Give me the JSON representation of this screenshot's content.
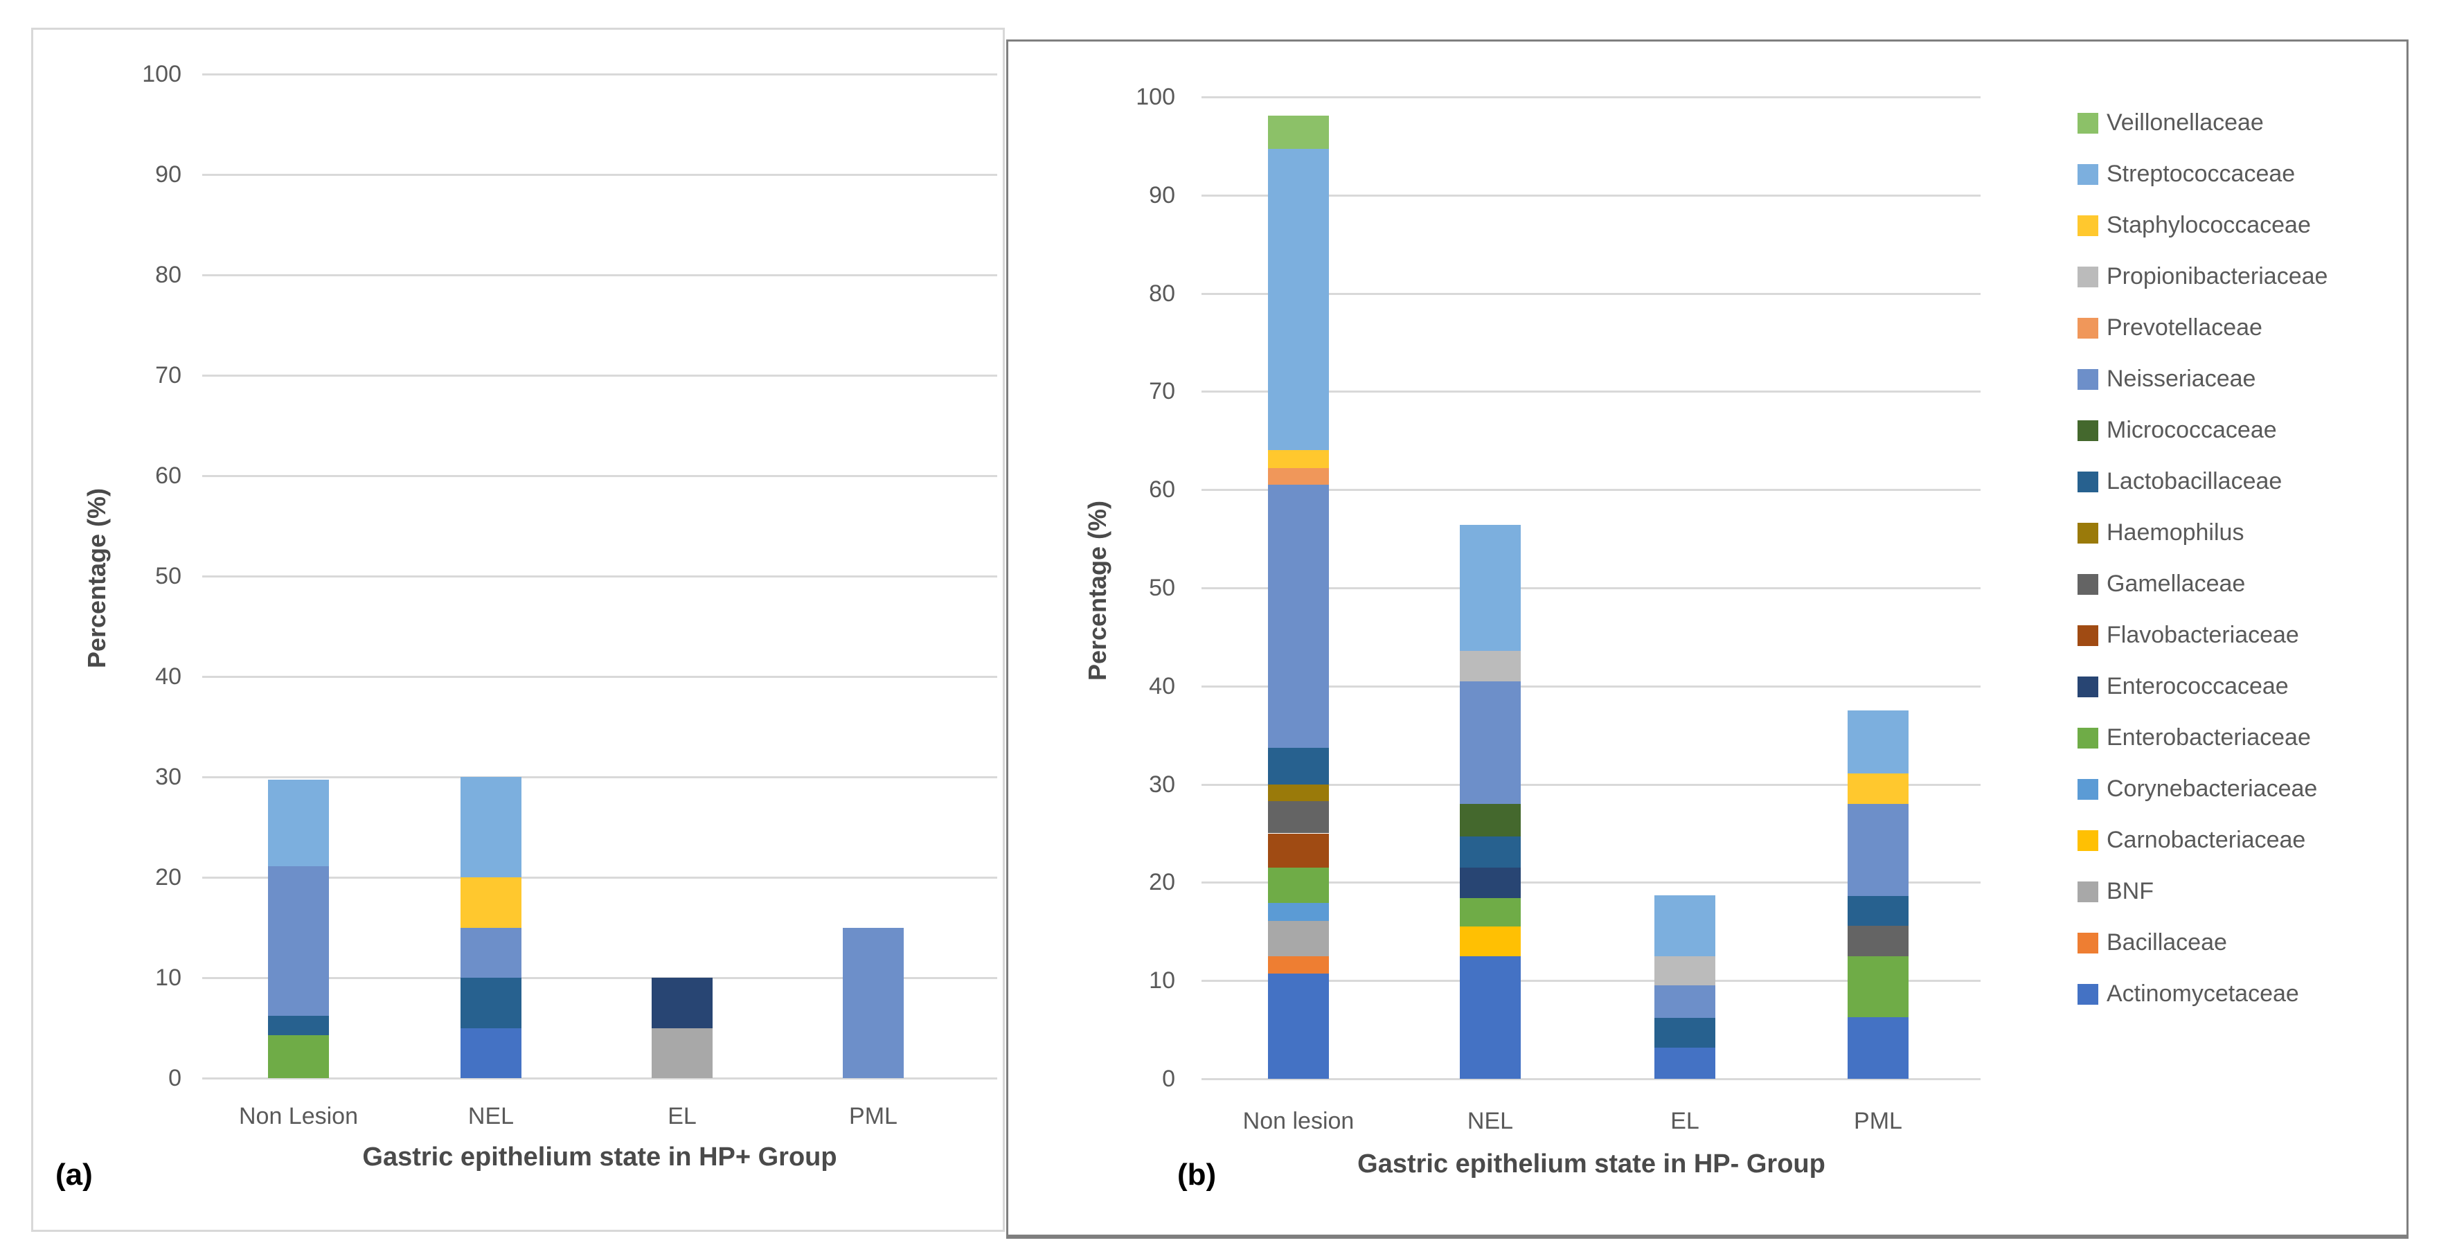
{
  "legend": {
    "items": [
      {
        "label": "Veillonellaceae",
        "color": "#8CC168"
      },
      {
        "label": "Streptococcaceae",
        "color": "#7CAFDE"
      },
      {
        "label": "Staphylococcaceae",
        "color": "#FFC82E"
      },
      {
        "label": "Propionibacteriaceae",
        "color": "#BBBBBB"
      },
      {
        "label": "Prevotellaceae",
        "color": "#F0975A"
      },
      {
        "label": "Neisseriaceae",
        "color": "#6D8FC9"
      },
      {
        "label": "Micrococcaceae",
        "color": "#44682D"
      },
      {
        "label": "Lactobacillaceae",
        "color": "#27618F"
      },
      {
        "label": "Haemophilus",
        "color": "#9A7A0A"
      },
      {
        "label": "Gamellaceae",
        "color": "#646464"
      },
      {
        "label": "Flavobacteriaceae",
        "color": "#A04B13"
      },
      {
        "label": "Enterococcaceae",
        "color": "#284573"
      },
      {
        "label": "Enterobacteriaceae",
        "color": "#6FAC47"
      },
      {
        "label": "Corynebacteriaceae",
        "color": "#5B9BD5"
      },
      {
        "label": "Carnobacteriaceae",
        "color": "#FFC003"
      },
      {
        "label": "BNF",
        "color": "#A8A8A8"
      },
      {
        "label": "Bacillaceae",
        "color": "#EE7E32"
      },
      {
        "label": "Actinomycetaceae",
        "color": "#4472C4"
      }
    ]
  },
  "chart_data": [
    {
      "type": "bar",
      "stacked": true,
      "panel_label": "(a)",
      "xlabel": "Gastric epithelium state in HP+ Group",
      "ylabel": "Percentage (%)",
      "categories": [
        "Non Lesion",
        "NEL",
        "EL",
        "PML"
      ],
      "ylim": [
        0,
        100
      ],
      "yticks": [
        0,
        10,
        20,
        30,
        40,
        50,
        60,
        70,
        80,
        90,
        100
      ],
      "grid": true,
      "legend_position": "none",
      "series": [
        {
          "name": "Veillonellaceae",
          "values": [
            0,
            0,
            0,
            0
          ]
        },
        {
          "name": "Streptococcaceae",
          "values": [
            8.6,
            10,
            0,
            0
          ]
        },
        {
          "name": "Staphylococcaceae",
          "values": [
            0,
            5,
            0,
            0
          ]
        },
        {
          "name": "Propionibacteriaceae",
          "values": [
            0,
            0,
            0,
            0
          ]
        },
        {
          "name": "Prevotellaceae",
          "values": [
            0,
            0,
            0,
            0
          ]
        },
        {
          "name": "Neisseriaceae",
          "values": [
            14.9,
            5,
            0,
            15
          ]
        },
        {
          "name": "Micrococcaceae",
          "values": [
            0,
            0,
            0,
            0
          ]
        },
        {
          "name": "Lactobacillaceae",
          "values": [
            1.9,
            5,
            0,
            0
          ]
        },
        {
          "name": "Haemophilus",
          "values": [
            0,
            0,
            0,
            0
          ]
        },
        {
          "name": "Gamellaceae",
          "values": [
            0,
            0,
            0,
            0
          ]
        },
        {
          "name": "Flavobacteriaceae",
          "values": [
            0,
            0,
            0,
            0
          ]
        },
        {
          "name": "Enterococcaceae",
          "values": [
            0,
            0,
            5,
            0
          ]
        },
        {
          "name": "Enterobacteriaceae",
          "values": [
            4.3,
            0,
            0,
            0
          ]
        },
        {
          "name": "Corynebacteriaceae",
          "values": [
            0,
            0,
            0,
            0
          ]
        },
        {
          "name": "Carnobacteriaceae",
          "values": [
            0,
            0,
            0,
            0
          ]
        },
        {
          "name": "BNF",
          "values": [
            0,
            0,
            5,
            0
          ]
        },
        {
          "name": "Bacillaceae",
          "values": [
            0,
            0,
            0,
            0
          ]
        },
        {
          "name": "Actinomycetaceae",
          "values": [
            0,
            5,
            0,
            0
          ]
        }
      ]
    },
    {
      "type": "bar",
      "stacked": true,
      "panel_label": "(b)",
      "xlabel": "Gastric epithelium state in HP- Group",
      "ylabel": "Percentage (%)",
      "categories": [
        "Non lesion",
        "NEL",
        "EL",
        "PML"
      ],
      "ylim": [
        0,
        100
      ],
      "yticks": [
        0,
        10,
        20,
        30,
        40,
        50,
        60,
        70,
        80,
        90,
        100
      ],
      "grid": true,
      "legend_position": "right",
      "series": [
        {
          "name": "Veillonellaceae",
          "values": [
            3.4,
            0,
            0,
            0
          ]
        },
        {
          "name": "Streptococcaceae",
          "values": [
            30.7,
            12.8,
            6.2,
            6.4
          ]
        },
        {
          "name": "Staphylococcaceae",
          "values": [
            1.8,
            0,
            0,
            3.1
          ]
        },
        {
          "name": "Propionibacteriaceae",
          "values": [
            0,
            3.1,
            3.0,
            0
          ]
        },
        {
          "name": "Prevotellaceae",
          "values": [
            1.7,
            0,
            0,
            0
          ]
        },
        {
          "name": "Neisseriaceae",
          "values": [
            26.8,
            12.5,
            3.3,
            9.4
          ]
        },
        {
          "name": "Micrococcaceae",
          "values": [
            0,
            3.3,
            0,
            0
          ]
        },
        {
          "name": "Lactobacillaceae",
          "values": [
            3.7,
            3.2,
            3.0,
            3.0
          ]
        },
        {
          "name": "Haemophilus",
          "values": [
            1.7,
            0,
            0,
            0
          ]
        },
        {
          "name": "Gamellaceae",
          "values": [
            3.3,
            0,
            0,
            3.1
          ]
        },
        {
          "name": "Flavobacteriaceae",
          "values": [
            3.5,
            0,
            0,
            0
          ]
        },
        {
          "name": "Enterococcaceae",
          "values": [
            0,
            3.1,
            0,
            0
          ]
        },
        {
          "name": "Enterobacteriaceae",
          "values": [
            3.6,
            2.9,
            0,
            6.2
          ]
        },
        {
          "name": "Corynebacteriaceae",
          "values": [
            1.8,
            0,
            0,
            0
          ]
        },
        {
          "name": "Carnobacteriaceae",
          "values": [
            0,
            3.0,
            0,
            0
          ]
        },
        {
          "name": "BNF",
          "values": [
            3.6,
            0,
            0,
            0
          ]
        },
        {
          "name": "Bacillaceae",
          "values": [
            1.8,
            0,
            0,
            0
          ]
        },
        {
          "name": "Actinomycetaceae",
          "values": [
            10.7,
            12.5,
            3.2,
            6.3
          ]
        }
      ]
    }
  ]
}
